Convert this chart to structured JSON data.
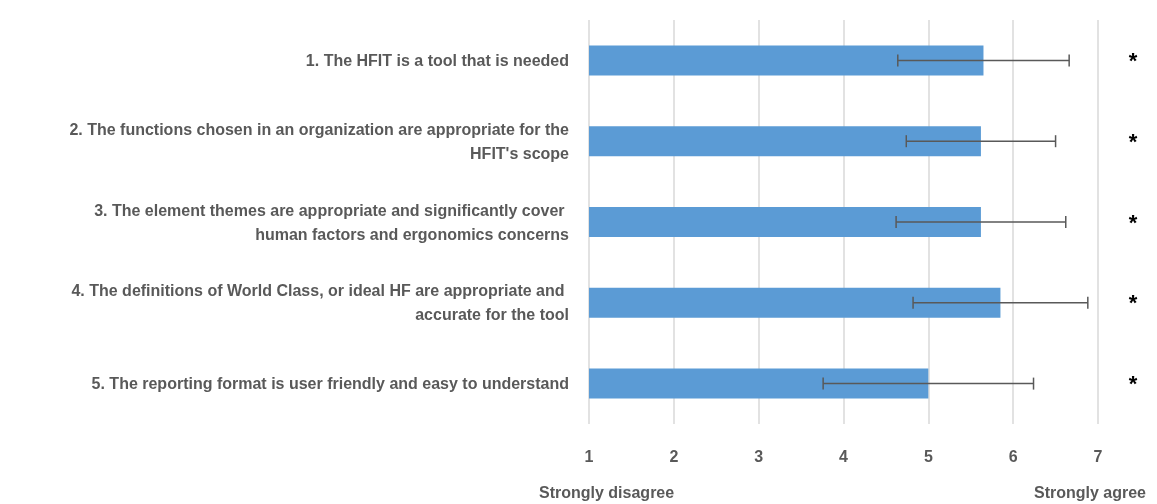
{
  "chart_data": {
    "type": "bar",
    "orientation": "horizontal",
    "categories": [
      "1. The HFIT is a tool that is needed",
      "2. The functions chosen in an organization are appropriate for the HFIT's scope",
      "3. The element themes are appropriate and significantly cover human factors and ergonomics concerns",
      "4. The definitions of World Class, or ideal HF are appropriate and accurate for the tool",
      "5. The reporting format is user friendly and easy to understand"
    ],
    "values": [
      5.65,
      5.62,
      5.62,
      5.85,
      5.0
    ],
    "errors": [
      1.01,
      0.88,
      1.0,
      1.03,
      1.24
    ],
    "color": "#5b9bd5",
    "xlim": [
      1,
      7
    ],
    "xticks": [
      1,
      2,
      3,
      4,
      5,
      6,
      7
    ],
    "grid": "x",
    "annotations": [
      "*",
      "*",
      "*",
      "*",
      "*",
      "Strongly disagree",
      "Strongly agree"
    ]
  }
}
